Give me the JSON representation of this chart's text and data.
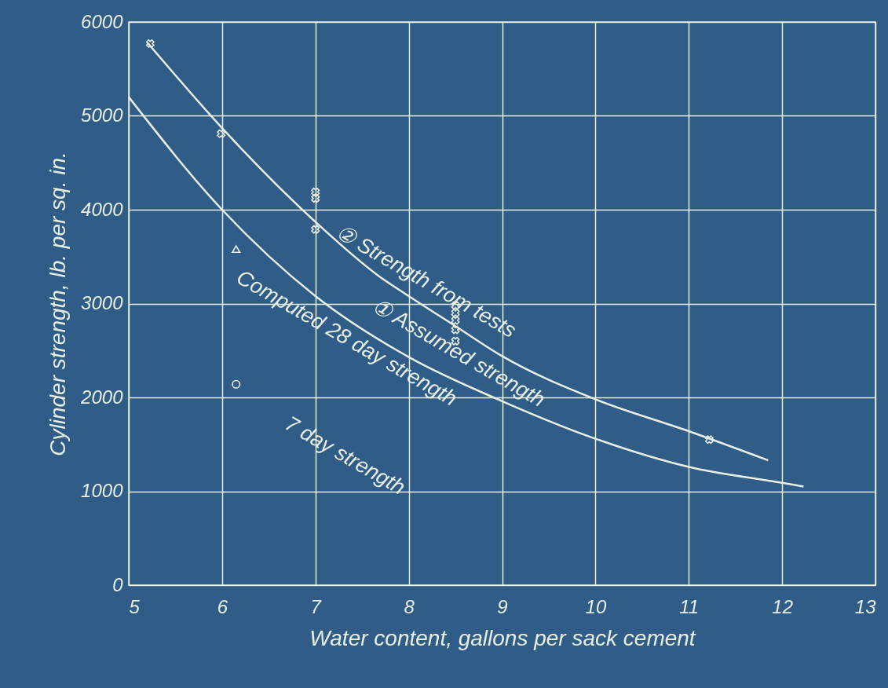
{
  "chart_data": {
    "type": "line",
    "xlabel": "Water content, gallons per sack cement",
    "ylabel": "Cylinder strength, lb. per sq. in.",
    "xlim": [
      5,
      13
    ],
    "ylim": [
      0,
      6000
    ],
    "xticks": [
      5,
      6,
      7,
      8,
      9,
      10,
      11,
      12,
      13
    ],
    "yticks": [
      0,
      1000,
      2000,
      3000,
      4000,
      5000,
      6000
    ],
    "grid": true,
    "line_style": "solid",
    "series": [
      {
        "color": "#e8eee2",
        "x": [
          5.2,
          6,
          7,
          7.67,
          8,
          8.5,
          9,
          10,
          11,
          11.85
        ],
        "values": [
          5780,
          4870,
          3870,
          3300,
          3080,
          2760,
          2440,
          1980,
          1640,
          1330
        ]
      },
      {
        "color": "#e8eee2",
        "x": [
          5,
          6,
          7,
          8,
          9,
          10,
          11,
          12,
          12.23
        ],
        "values": [
          5200,
          4000,
          3080,
          2430,
          1960,
          1560,
          1260,
          1090,
          1050
        ]
      },
      {
        "type": "scatter",
        "marker": "cross",
        "color": "#e8eee2",
        "x": [
          5.23,
          5.99,
          7,
          7,
          7,
          8.5,
          8.5,
          8.5,
          8.5,
          8.5,
          11.22
        ],
        "values": [
          5770,
          4810,
          4190,
          4120,
          3790,
          2980,
          2900,
          2820,
          2720,
          2600,
          1550
        ]
      },
      {
        "type": "scatter",
        "marker": "triangle",
        "color": "#e8eee2",
        "x": [
          6.15
        ],
        "values": [
          3580
        ]
      },
      {
        "type": "scatter",
        "marker": "circle",
        "color": "#e8eee2",
        "x": [
          6.15
        ],
        "values": [
          2140
        ]
      }
    ],
    "annotations": [
      {
        "text": "② Strength from tests",
        "x": 7,
        "y": 3870
      },
      {
        "text": "① Assumed strength",
        "x": 7,
        "y": 3080
      },
      {
        "text": "Computed 28 day strength",
        "x": 6,
        "y": 4000
      },
      {
        "text": "7 day strength",
        "x": 6.15,
        "y": 2140
      }
    ]
  }
}
